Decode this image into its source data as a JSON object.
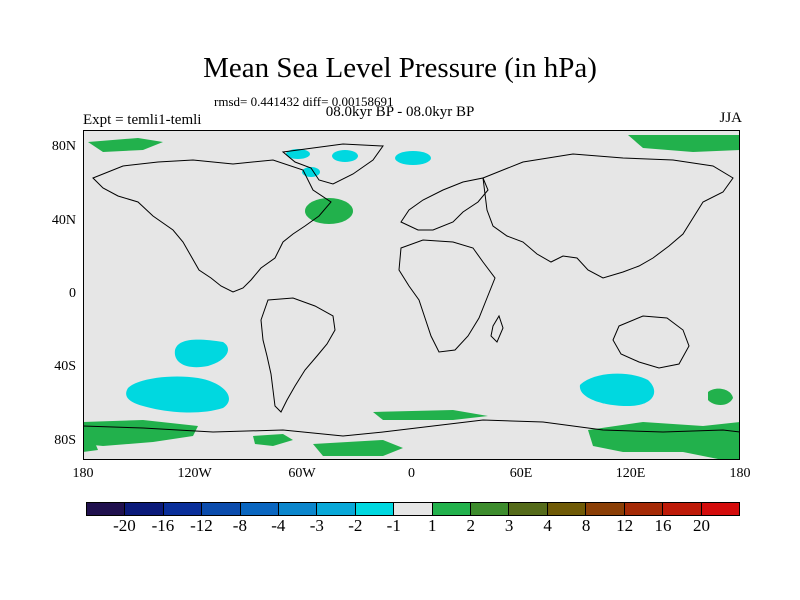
{
  "figure": {
    "title": "Mean Sea Level Pressure (in hPa)",
    "stats": "rmsd= 0.441432 diff= 0.00158691",
    "period": "08.0kyr BP - 08.0kyr BP",
    "experiment": "Expt = temli1-temli",
    "season": "JJA"
  },
  "map": {
    "background_color": "#e6e6e6",
    "x_ticks": [
      "180",
      "120W",
      "60W",
      "0",
      "60E",
      "120E",
      "180"
    ],
    "y_ticks": [
      "80N",
      "40N",
      "0",
      "40S",
      "80S"
    ],
    "anomaly_regions": [
      {
        "label": "North Atlantic positive anomaly",
        "color": "#22b14c"
      },
      {
        "label": "Arctic positive anomaly",
        "color": "#22b14c"
      },
      {
        "label": "Greenland negative anomaly",
        "color": "#00d8e0"
      },
      {
        "label": "South Pacific negative anomaly",
        "color": "#00d8e0"
      },
      {
        "label": "South Indian Ocean negative anomaly",
        "color": "#00d8e0"
      },
      {
        "label": "Antarctic positive anomaly",
        "color": "#22b14c"
      }
    ]
  },
  "colorbar": {
    "labels": [
      "-20",
      "-16",
      "-12",
      "-8",
      "-4",
      "-3",
      "-2",
      "-1",
      "1",
      "2",
      "3",
      "4",
      "8",
      "12",
      "16",
      "20"
    ],
    "colors": [
      "#20104e",
      "#0b1a7a",
      "#0a2f9a",
      "#0b4cad",
      "#0a66c0",
      "#0b86cc",
      "#08a8d8",
      "#00d8e0",
      "#e6e6e6",
      "#22b14c",
      "#3d8c2d",
      "#556b1a",
      "#6f5a06",
      "#8b3f06",
      "#a52a06",
      "#be1a08",
      "#d40c0c"
    ]
  }
}
